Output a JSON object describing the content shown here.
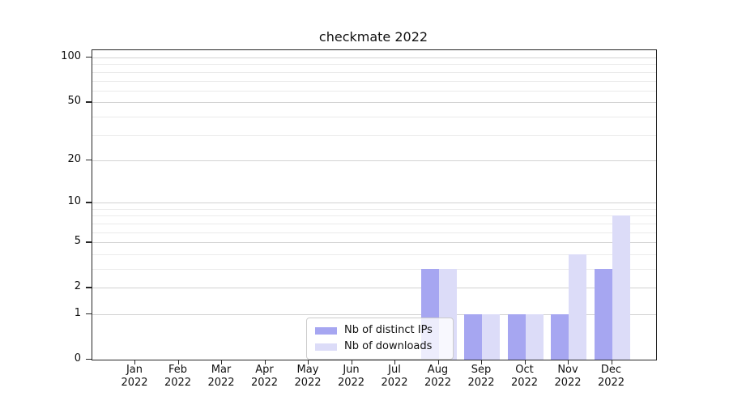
{
  "chart_data": {
    "type": "bar",
    "title": "checkmate 2022",
    "categories": [
      "Jan",
      "Feb",
      "Mar",
      "Apr",
      "May",
      "Jun",
      "Jul",
      "Aug",
      "Sep",
      "Oct",
      "Nov",
      "Dec"
    ],
    "year_label": "2022",
    "series": [
      {
        "name": "Nb of distinct IPs",
        "color": "#a6a6f1",
        "values": [
          0,
          0,
          0,
          0,
          0,
          0,
          0,
          3,
          1,
          1,
          1,
          3
        ]
      },
      {
        "name": "Nb of downloads",
        "color": "#dcdcf8",
        "values": [
          0,
          0,
          0,
          0,
          0,
          0,
          0,
          3,
          1,
          1,
          4,
          8
        ]
      }
    ],
    "yscale": "log1p",
    "ylim": [
      0,
      112
    ],
    "ytick_values": [
      0,
      1,
      2,
      5,
      10,
      20,
      50,
      100
    ],
    "ytick_labels": [
      "0",
      "1",
      "2",
      "5",
      "10",
      "20",
      "50",
      "100"
    ],
    "minor_ytick_values": [
      3,
      4,
      6,
      7,
      8,
      9,
      30,
      40,
      60,
      70,
      80,
      90
    ],
    "grid": true,
    "xlabel": "",
    "ylabel": "",
    "legend_position": "lower center"
  },
  "colors": {
    "background": "#ffffff",
    "axis": "#262626",
    "grid_major": "#d2d2d2",
    "grid_minor": "#ebebeb",
    "text": "#111111",
    "bar_distinct_ips": "#a6a6f1",
    "bar_downloads": "#dcdcf8",
    "legend_border": "#cccccc"
  }
}
